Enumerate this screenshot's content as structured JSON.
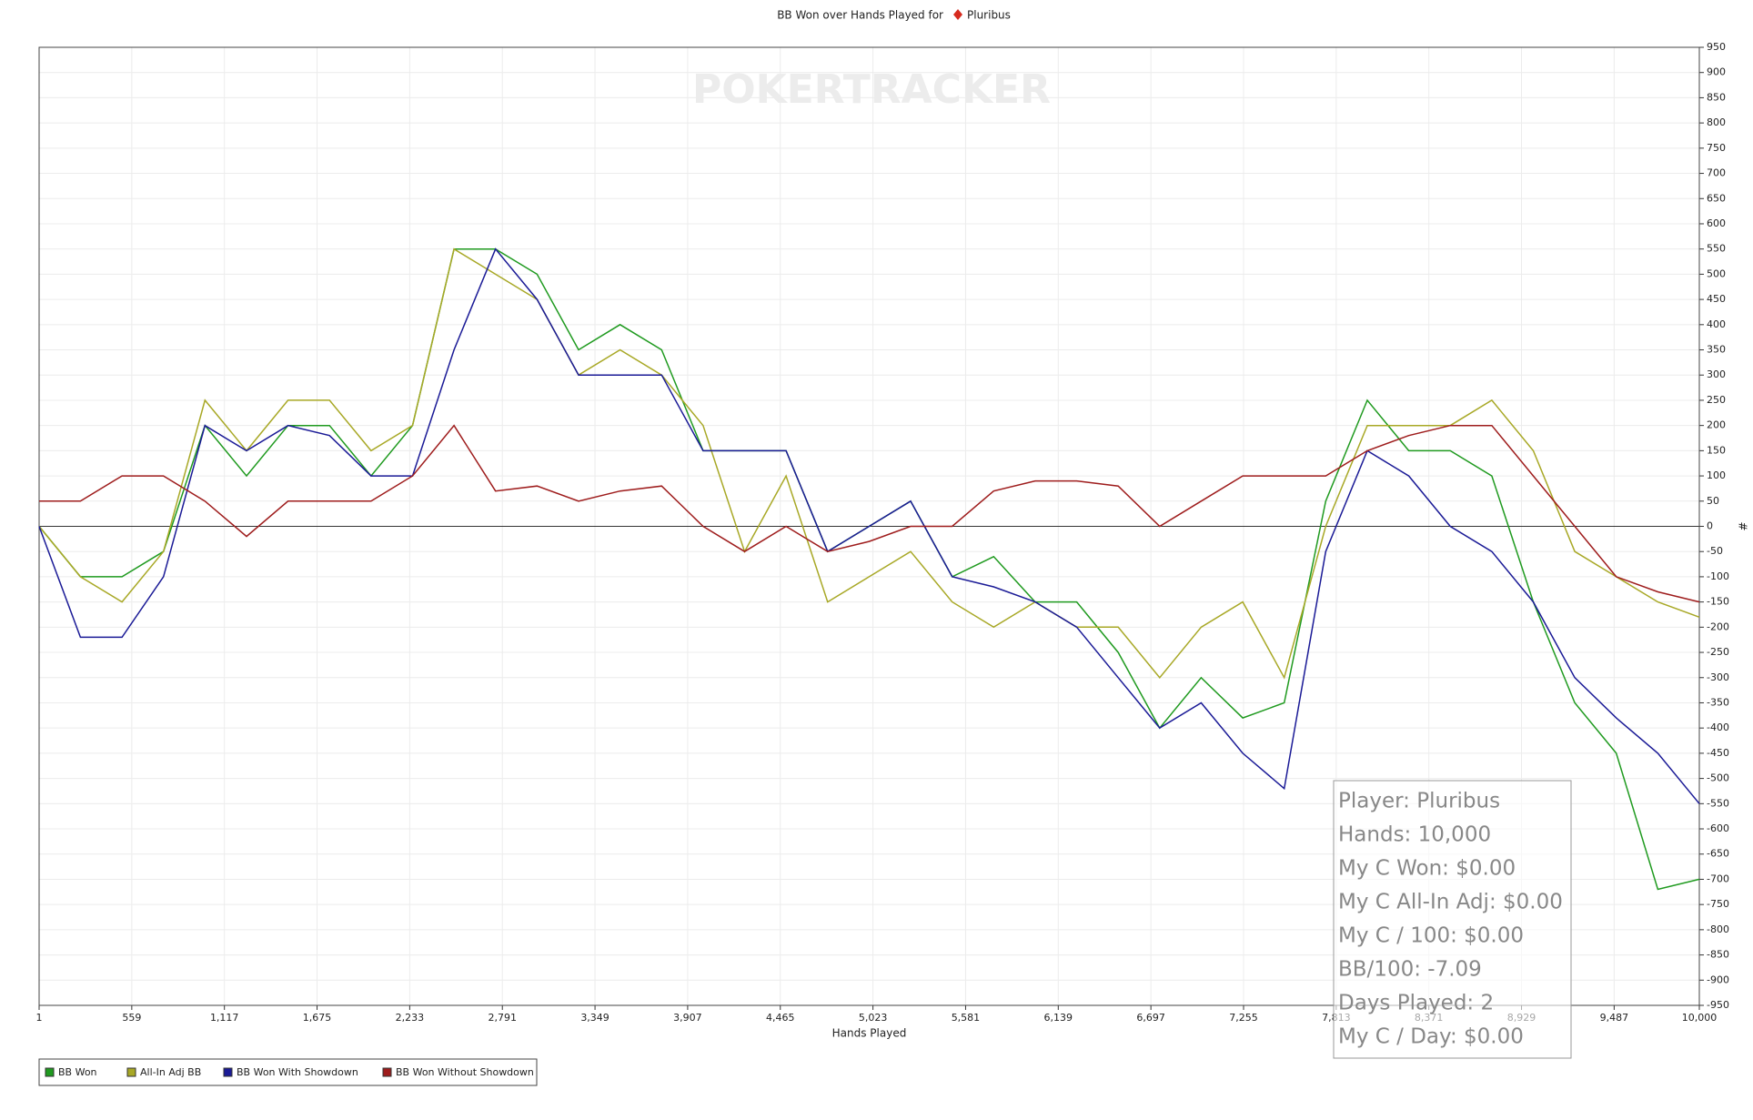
{
  "chart_data": {
    "type": "line",
    "title": "BB Won over Hands Played for",
    "player": "Pluribus",
    "watermark": "POKERTRACKER",
    "x_label": "Hands Played",
    "y_label": "#",
    "x": [
      1,
      250,
      500,
      750,
      1000,
      1250,
      1500,
      1750,
      2000,
      2250,
      2500,
      2750,
      3000,
      3250,
      3500,
      3750,
      4000,
      4250,
      4500,
      4750,
      5000,
      5250,
      5500,
      5750,
      6000,
      6250,
      6500,
      6750,
      7000,
      7250,
      7500,
      7750,
      8000,
      8250,
      8500,
      8750,
      9000,
      9250,
      9500,
      9750,
      10000
    ],
    "series": [
      {
        "name": "BB Won",
        "color": "#1f9a1f",
        "values": [
          0,
          -100,
          -100,
          -50,
          200,
          100,
          200,
          200,
          100,
          200,
          550,
          550,
          500,
          350,
          400,
          350,
          150,
          150,
          150,
          -50,
          0,
          50,
          -100,
          -60,
          -150,
          -150,
          -250,
          -400,
          -300,
          -380,
          -350,
          50,
          250,
          150,
          150,
          100,
          -150,
          -350,
          -450,
          -720,
          -700
        ]
      },
      {
        "name": "All-In Adj BB",
        "color": "#a8a826",
        "values": [
          0,
          -100,
          -150,
          -50,
          250,
          150,
          250,
          250,
          150,
          200,
          550,
          500,
          450,
          300,
          350,
          300,
          200,
          -50,
          100,
          -150,
          -100,
          -50,
          -150,
          -200,
          -150,
          -200,
          -200,
          -300,
          -200,
          -150,
          -300,
          0,
          200,
          200,
          200,
          250,
          150,
          -50,
          -100,
          -150,
          -180
        ]
      },
      {
        "name": "BB Won With Showdown",
        "color": "#1a1a96",
        "values": [
          0,
          -220,
          -220,
          -100,
          200,
          150,
          200,
          180,
          100,
          100,
          350,
          550,
          450,
          300,
          300,
          300,
          150,
          150,
          150,
          -50,
          0,
          50,
          -100,
          -120,
          -150,
          -200,
          -300,
          -400,
          -350,
          -450,
          -520,
          -50,
          150,
          100,
          0,
          -50,
          -150,
          -300,
          -380,
          -450,
          -550
        ]
      },
      {
        "name": "BB Won Without Showdown",
        "color": "#9e1c1c",
        "values": [
          50,
          50,
          100,
          100,
          50,
          -20,
          50,
          50,
          50,
          100,
          200,
          70,
          80,
          50,
          70,
          80,
          0,
          -50,
          0,
          -50,
          -30,
          0,
          0,
          70,
          90,
          90,
          80,
          0,
          50,
          100,
          100,
          100,
          150,
          180,
          200,
          200,
          100,
          0,
          -100,
          -130,
          -150
        ]
      }
    ],
    "xlim": [
      1,
      10000
    ],
    "xticks": [
      1,
      559,
      {
        "value": 1117,
        "label": "1,117"
      },
      {
        "value": 1675,
        "label": "1,675"
      },
      {
        "value": 2233,
        "label": "2,233"
      },
      {
        "value": 2791,
        "label": "2,791"
      },
      {
        "value": 3349,
        "label": "3,349"
      },
      {
        "value": 3907,
        "label": "3,907"
      },
      {
        "value": 4465,
        "label": "4,465"
      },
      {
        "value": 5023,
        "label": "5,023"
      },
      {
        "value": 5581,
        "label": "5,581"
      },
      {
        "value": 6139,
        "label": "6,139"
      },
      {
        "value": 6697,
        "label": "6,697"
      },
      {
        "value": 7255,
        "label": "7,255"
      },
      {
        "value": 7813,
        "label": "7,813"
      },
      {
        "value": 8371,
        "label": "8,371"
      },
      {
        "value": 8929,
        "label": "8,929"
      },
      {
        "value": 9487,
        "label": "9,487"
      },
      {
        "value": 10000,
        "label": "10,000"
      }
    ],
    "ylim": [
      -950,
      950
    ],
    "yticks": [
      -950,
      -900,
      -850,
      -800,
      -750,
      -700,
      -650,
      -600,
      -550,
      -500,
      -450,
      -400,
      -350,
      -300,
      -250,
      -200,
      -150,
      -100,
      -50,
      0,
      50,
      100,
      150,
      200,
      250,
      300,
      350,
      400,
      450,
      500,
      550,
      600,
      650,
      700,
      750,
      800,
      850,
      900,
      950
    ],
    "grid": true,
    "legend": "bottom-left",
    "stats": [
      "Player: Pluribus",
      "Hands: 10,000",
      "My C Won: $0.00",
      "My C All-In Adj: $0.00",
      "My C / 100: $0.00",
      "BB/100: -7.09",
      "Days Played: 2",
      "My C / Day: $0.00"
    ]
  }
}
